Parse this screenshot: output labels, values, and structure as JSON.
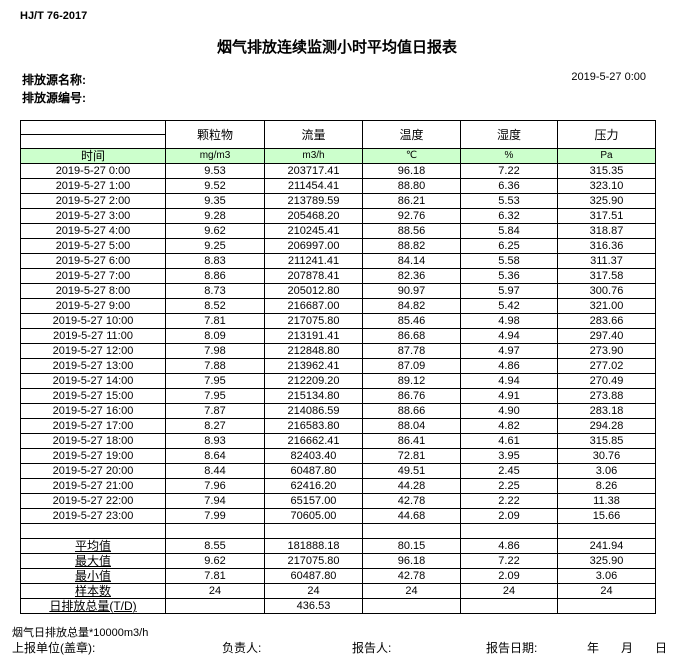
{
  "standard": "HJ/T  76-2017",
  "title": "烟气排放连续监测小时平均值日报表",
  "source_name_label": "排放源名称:",
  "source_no_label": "排放源编号:",
  "report_datetime": "2019-5-27 0:00",
  "columns": [
    {
      "name": "颗粒物",
      "unit": "mg/m3"
    },
    {
      "name": "流量",
      "unit": "m3/h"
    },
    {
      "name": "温度",
      "unit": "℃"
    },
    {
      "name": "湿度",
      "unit": "%"
    },
    {
      "name": "压力",
      "unit": "Pa"
    }
  ],
  "time_label": "时间",
  "rows": [
    [
      "2019-5-27 0:00",
      "9.53",
      "203717.41",
      "96.18",
      "7.22",
      "315.35"
    ],
    [
      "2019-5-27 1:00",
      "9.52",
      "211454.41",
      "88.80",
      "6.36",
      "323.10"
    ],
    [
      "2019-5-27 2:00",
      "9.35",
      "213789.59",
      "86.21",
      "5.53",
      "325.90"
    ],
    [
      "2019-5-27 3:00",
      "9.28",
      "205468.20",
      "92.76",
      "6.32",
      "317.51"
    ],
    [
      "2019-5-27 4:00",
      "9.62",
      "210245.41",
      "88.56",
      "5.84",
      "318.87"
    ],
    [
      "2019-5-27 5:00",
      "9.25",
      "206997.00",
      "88.82",
      "6.25",
      "316.36"
    ],
    [
      "2019-5-27 6:00",
      "8.83",
      "211241.41",
      "84.14",
      "5.58",
      "311.37"
    ],
    [
      "2019-5-27 7:00",
      "8.86",
      "207878.41",
      "82.36",
      "5.36",
      "317.58"
    ],
    [
      "2019-5-27 8:00",
      "8.73",
      "205012.80",
      "90.97",
      "5.97",
      "300.76"
    ],
    [
      "2019-5-27 9:00",
      "8.52",
      "216687.00",
      "84.82",
      "5.42",
      "321.00"
    ],
    [
      "2019-5-27 10:00",
      "7.81",
      "217075.80",
      "85.46",
      "4.98",
      "283.66"
    ],
    [
      "2019-5-27 11:00",
      "8.09",
      "213191.41",
      "86.68",
      "4.94",
      "297.40"
    ],
    [
      "2019-5-27 12:00",
      "7.98",
      "212848.80",
      "87.78",
      "4.97",
      "273.90"
    ],
    [
      "2019-5-27 13:00",
      "7.88",
      "213962.41",
      "87.09",
      "4.86",
      "277.02"
    ],
    [
      "2019-5-27 14:00",
      "7.95",
      "212209.20",
      "89.12",
      "4.94",
      "270.49"
    ],
    [
      "2019-5-27 15:00",
      "7.95",
      "215134.80",
      "86.76",
      "4.91",
      "273.88"
    ],
    [
      "2019-5-27 16:00",
      "7.87",
      "214086.59",
      "88.66",
      "4.90",
      "283.18"
    ],
    [
      "2019-5-27 17:00",
      "8.27",
      "216583.80",
      "88.04",
      "4.82",
      "294.28"
    ],
    [
      "2019-5-27 18:00",
      "8.93",
      "216662.41",
      "86.41",
      "4.61",
      "315.85"
    ],
    [
      "2019-5-27 19:00",
      "8.64",
      "82403.40",
      "72.81",
      "3.95",
      "30.76"
    ],
    [
      "2019-5-27 20:00",
      "8.44",
      "60487.80",
      "49.51",
      "2.45",
      "3.06"
    ],
    [
      "2019-5-27 21:00",
      "7.96",
      "62416.20",
      "44.28",
      "2.25",
      "8.26"
    ],
    [
      "2019-5-27 22:00",
      "7.94",
      "65157.00",
      "42.78",
      "2.22",
      "11.38"
    ],
    [
      "2019-5-27 23:00",
      "7.99",
      "70605.00",
      "44.68",
      "2.09",
      "15.66"
    ]
  ],
  "summary": [
    [
      "平均值",
      "8.55",
      "181888.18",
      "80.15",
      "4.86",
      "241.94"
    ],
    [
      "最大值",
      "9.62",
      "217075.80",
      "96.18",
      "7.22",
      "325.90"
    ],
    [
      "最小值",
      "7.81",
      "60487.80",
      "42.78",
      "2.09",
      "3.06"
    ],
    [
      "样本数",
      "24",
      "24",
      "24",
      "24",
      "24"
    ],
    [
      "日排放总量(T/D)",
      "",
      "436.53",
      "",
      "",
      ""
    ]
  ],
  "note": "烟气日排放总量*10000m3/h",
  "footer": {
    "unit": "上报单位(盖章):",
    "person": "负责人:",
    "reporter": "报告人:",
    "date_label": "报告日期:",
    "year": "年",
    "month": "月",
    "day": "日"
  },
  "colors": {
    "unit_row_bg": "#ccffcc",
    "border": "#000000"
  }
}
